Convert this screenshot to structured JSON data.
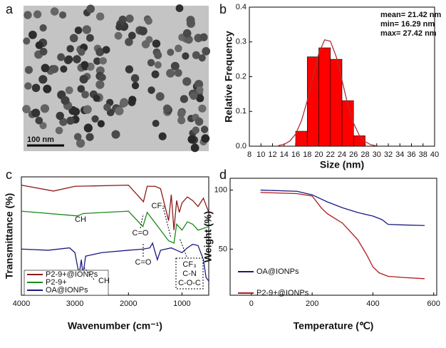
{
  "chart_data": [
    {
      "type": "image",
      "label": "a",
      "scale_bar": "100 nm"
    },
    {
      "type": "histogram",
      "label": "b",
      "xlabel": "Size (nm)",
      "ylabel": "Relative Frequency",
      "bins": [
        16,
        18,
        20,
        22,
        24,
        26,
        28
      ],
      "values": [
        0.043,
        0.257,
        0.283,
        0.25,
        0.131,
        0.03
      ],
      "color": "#ff0000",
      "fit": {
        "color": "#b03030",
        "x": [
          13,
          14,
          15,
          16,
          17,
          18,
          19,
          20,
          21,
          22,
          23,
          24,
          25,
          26,
          27,
          28,
          29,
          30
        ],
        "y": [
          0.002,
          0.005,
          0.015,
          0.035,
          0.073,
          0.131,
          0.201,
          0.267,
          0.306,
          0.302,
          0.258,
          0.19,
          0.12,
          0.066,
          0.031,
          0.013,
          0.004,
          0.001
        ]
      },
      "annotations": [
        "mean= 21.42 nm",
        "min= 16.29 nm",
        "max= 27.42 nm"
      ],
      "xlim": [
        8,
        40
      ],
      "xticks": [
        8,
        10,
        12,
        14,
        16,
        18,
        20,
        22,
        24,
        26,
        28,
        30,
        32,
        34,
        36,
        38,
        40
      ],
      "ylim": [
        0,
        0.4
      ],
      "yticks": [
        {
          "value": 0,
          "label": "0.0"
        },
        0.1,
        0.2,
        0.3,
        0.4
      ]
    },
    {
      "type": "line",
      "label": "c",
      "xlabel": "Wavenumber (cm⁻¹)",
      "ylabel": "Transmittance (%)",
      "xlim": [
        4000,
        500
      ],
      "xticks": [
        4000,
        3000,
        2000,
        1000
      ],
      "ylim": [
        0,
        100
      ],
      "legend": "lower left",
      "annotations": [
        "CH",
        "C=O",
        "CF₂",
        "C=O",
        "CH",
        "CF₃",
        "C-N",
        "C-O-C"
      ],
      "series": [
        {
          "name": "P2-9+@IONPs",
          "color": "#8b1a1a",
          "x": [
            4000,
            3400,
            3000,
            2000,
            1720,
            1650,
            1500,
            1400,
            1250,
            1200,
            1150,
            1100,
            1050,
            1000,
            900,
            800,
            700,
            600,
            500
          ],
          "values": [
            93,
            88,
            92,
            93,
            79,
            92,
            92,
            90,
            63,
            85,
            55,
            80,
            70,
            78,
            83,
            80,
            75,
            82,
            70
          ]
        },
        {
          "name": "P2-9+",
          "color": "#1a8a1a",
          "x": [
            4000,
            2950,
            2850,
            2000,
            1730,
            1650,
            1250,
            1150,
            1100,
            1000,
            900,
            800,
            700,
            500
          ],
          "values": [
            71,
            67,
            69,
            71,
            58,
            70,
            46,
            44,
            60,
            55,
            62,
            60,
            55,
            58
          ]
        },
        {
          "name": "OA@IONPs",
          "color": "#1a1a80",
          "x": [
            4000,
            3500,
            3100,
            3000,
            2950,
            2920,
            2880,
            2850,
            2800,
            2500,
            2000,
            1720,
            1600,
            1550,
            1460,
            1400,
            1200,
            1100,
            1000,
            900,
            800,
            700,
            600,
            550,
            500
          ],
          "values": [
            39,
            38,
            40,
            36,
            24,
            18,
            30,
            17,
            33,
            36,
            38,
            39,
            40,
            44,
            30,
            38,
            40,
            38,
            36,
            40,
            43,
            42,
            30,
            15,
            12
          ]
        }
      ]
    },
    {
      "type": "line",
      "label": "d",
      "xlabel": "Temperature (℃)",
      "ylabel": "Weight (%)",
      "xlim": [
        -70,
        610
      ],
      "xticks": [
        0,
        200,
        400,
        600
      ],
      "ylim": [
        11,
        110
      ],
      "yticks": [
        50,
        100
      ],
      "legend": "center left",
      "series": [
        {
          "name": "OA@IONPs",
          "color": "#1a1a80",
          "x": [
            30,
            150,
            200,
            250,
            300,
            350,
            400,
            430,
            450,
            500,
            570
          ],
          "values": [
            100,
            99,
            96,
            90,
            85,
            81,
            78,
            75,
            71,
            70.5,
            70
          ]
        },
        {
          "name": "P2-9+@IONPs",
          "color": "#b01a1a",
          "x": [
            30,
            150,
            200,
            230,
            250,
            300,
            350,
            380,
            400,
            420,
            450,
            500,
            570
          ],
          "values": [
            98,
            97,
            95,
            85,
            80,
            72,
            58,
            45,
            35,
            30,
            27,
            26,
            25
          ]
        }
      ]
    }
  ]
}
